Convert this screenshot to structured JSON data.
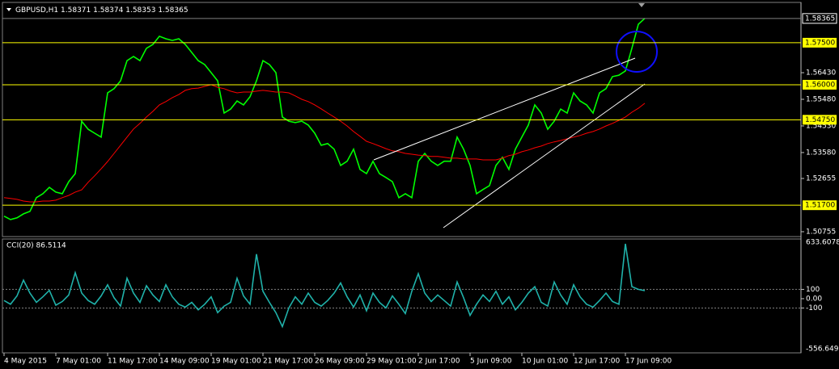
{
  "chart_data": [
    {
      "type": "line",
      "title": "GBPUSD,H1",
      "quote": [
        1.58371,
        1.58374,
        1.58353,
        1.58365
      ],
      "categories": [
        "4 May 2015",
        null,
        null,
        null,
        null,
        null,
        null,
        null,
        "7 May 01:00",
        null,
        null,
        null,
        null,
        null,
        null,
        null,
        "11 May 17:00",
        null,
        null,
        null,
        null,
        null,
        null,
        null,
        "14 May 09:00",
        null,
        null,
        null,
        null,
        null,
        null,
        null,
        "19 May 01:00",
        null,
        null,
        null,
        null,
        null,
        null,
        null,
        "21 May 17:00",
        null,
        null,
        null,
        null,
        null,
        null,
        null,
        "26 May 09:00",
        null,
        null,
        null,
        null,
        null,
        null,
        null,
        "29 May 01:00",
        null,
        null,
        null,
        null,
        null,
        null,
        null,
        "2 Jun 17:00",
        null,
        null,
        null,
        null,
        null,
        null,
        null,
        "5 Jun 09:00",
        null,
        null,
        null,
        null,
        null,
        null,
        null,
        "10 Jun 01:00",
        null,
        null,
        null,
        null,
        null,
        null,
        null,
        "12 Jun 17:00",
        null,
        null,
        null,
        null,
        null,
        null,
        null,
        "17 Jun 09:00",
        null,
        null,
        null
      ],
      "series": [
        {
          "color": "#00ff00",
          "values": [
            1.5131,
            1.5119,
            1.5125,
            1.5139,
            1.5148,
            1.5197,
            1.5211,
            1.5234,
            1.5217,
            1.5211,
            1.5254,
            1.5283,
            1.547,
            1.5441,
            1.5427,
            1.5413,
            1.5571,
            1.5586,
            1.5614,
            1.5686,
            1.5701,
            1.5686,
            1.573,
            1.5744,
            1.5773,
            1.5764,
            1.5758,
            1.5764,
            1.5744,
            1.5715,
            1.5686,
            1.5672,
            1.5643,
            1.5614,
            1.5499,
            1.5513,
            1.5542,
            1.5528,
            1.5557,
            1.5614,
            1.5686,
            1.5672,
            1.5643,
            1.5485,
            1.547,
            1.5465,
            1.547,
            1.5456,
            1.5427,
            1.5384,
            1.539,
            1.537,
            1.5312,
            1.5327,
            1.537,
            1.5298,
            1.5283,
            1.5327,
            1.5283,
            1.5269,
            1.5254,
            1.5197,
            1.5211,
            1.5197,
            1.5327,
            1.5355,
            1.5327,
            1.5312,
            1.5327,
            1.5327,
            1.5413,
            1.537,
            1.5312,
            1.5211,
            1.5226,
            1.524,
            1.5312,
            1.5341,
            1.5298,
            1.537,
            1.5413,
            1.5456,
            1.5528,
            1.5499,
            1.5441,
            1.547,
            1.5513,
            1.5499,
            1.5571,
            1.5542,
            1.5528,
            1.5499,
            1.5571,
            1.5586,
            1.5629,
            1.5634,
            1.5649,
            1.573,
            1.5816,
            1.5837
          ]
        },
        {
          "color": "#ff0000",
          "values": [
            1.5197,
            1.5194,
            1.5191,
            1.5185,
            1.5182,
            1.5182,
            1.5185,
            1.5185,
            1.5188,
            1.5197,
            1.5205,
            1.5217,
            1.5225,
            1.5252,
            1.5275,
            1.53,
            1.5326,
            1.5355,
            1.5384,
            1.5413,
            1.5442,
            1.5462,
            1.5485,
            1.5505,
            1.5528,
            1.554,
            1.5554,
            1.5565,
            1.558,
            1.5586,
            1.5588,
            1.5594,
            1.56,
            1.5591,
            1.5586,
            1.5577,
            1.5571,
            1.5574,
            1.5574,
            1.5577,
            1.558,
            1.5577,
            1.5574,
            1.5574,
            1.5571,
            1.556,
            1.5548,
            1.554,
            1.5528,
            1.5514,
            1.5499,
            1.5485,
            1.547,
            1.5453,
            1.5433,
            1.5416,
            1.5398,
            1.539,
            1.5381,
            1.5372,
            1.5364,
            1.5361,
            1.5355,
            1.5352,
            1.5349,
            1.5347,
            1.5344,
            1.5344,
            1.5341,
            1.5338,
            1.5338,
            1.5335,
            1.5335,
            1.5335,
            1.5332,
            1.5332,
            1.5332,
            1.5338,
            1.5347,
            1.5352,
            1.5361,
            1.5367,
            1.5375,
            1.5381,
            1.539,
            1.5396,
            1.5401,
            1.5407,
            1.5413,
            1.5419,
            1.5427,
            1.5433,
            1.5442,
            1.5453,
            1.5462,
            1.5473,
            1.5485,
            1.5502,
            1.5516,
            1.5534
          ]
        }
      ],
      "ylim": [
        1.5061,
        1.5888
      ],
      "yticks": [
        {
          "value": 1.5643,
          "label": "1.56430"
        },
        {
          "value": 1.5548,
          "label": "1.55480"
        },
        {
          "value": 1.5453,
          "label": "1.54530"
        },
        {
          "value": 1.5358,
          "label": "1.53580"
        },
        1.52655,
        1.50755
      ],
      "levels": [
        {
          "value": 1.575,
          "label": "1.57500"
        },
        {
          "value": 1.56,
          "label": "1.56000"
        },
        {
          "value": 1.5475,
          "label": "1.54750"
        },
        {
          "value": 1.517,
          "label": "1.51700"
        }
      ],
      "level_color": "#ffff00",
      "last_price": 1.58365
    },
    {
      "type": "line",
      "title": "CCI(20) 86.5114",
      "series": [
        {
          "color": "#20b2aa",
          "values": [
            -20,
            -60,
            30,
            200,
            60,
            -40,
            20,
            90,
            -70,
            -30,
            40,
            280,
            60,
            -20,
            -60,
            30,
            150,
            10,
            -80,
            220,
            60,
            -40,
            140,
            40,
            -30,
            150,
            20,
            -60,
            -90,
            -40,
            -120,
            -60,
            20,
            -150,
            -80,
            -40,
            220,
            30,
            -60,
            480,
            80,
            -40,
            -150,
            -300,
            -100,
            20,
            -60,
            60,
            -40,
            -80,
            -20,
            60,
            170,
            20,
            -90,
            40,
            -130,
            60,
            -40,
            -100,
            30,
            -60,
            -160,
            80,
            270,
            60,
            -30,
            40,
            -20,
            -80,
            180,
            10,
            -180,
            -60,
            40,
            -30,
            80,
            -60,
            20,
            -120,
            -40,
            60,
            130,
            -40,
            -80,
            180,
            40,
            -60,
            150,
            20,
            -60,
            -90,
            -20,
            60,
            -30,
            -60,
            590,
            130,
            100,
            86.5114
          ]
        }
      ],
      "ylim": [
        -556.6499,
        633.6078
      ],
      "yticks": [
        100,
        {
          "value": 0,
          "label": "0.00"
        },
        -100
      ]
    }
  ]
}
